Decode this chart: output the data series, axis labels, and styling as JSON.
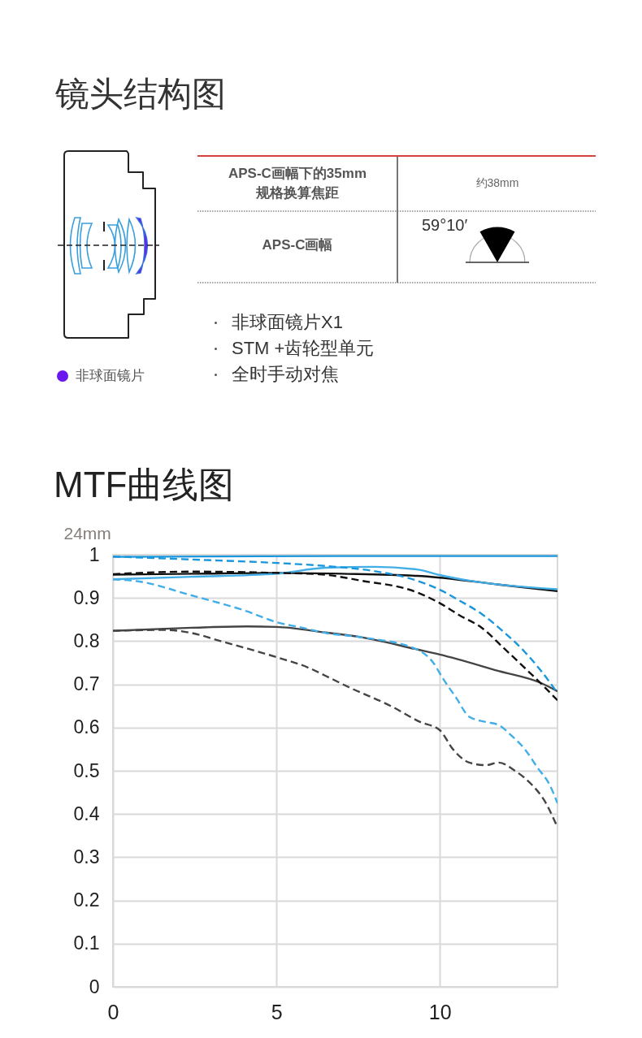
{
  "chart_data": [
    {
      "type": "other",
      "title": "镜头结构图",
      "annotations": [
        "APS-C画幅下的35mm规格换算焦距",
        "约38mm",
        "APS-C画幅",
        "59°10′",
        "非球面镜片X1",
        "STM +齿轮型单元",
        "全时手动对焦",
        "非球面镜片"
      ]
    },
    {
      "type": "line",
      "title": "MTF曲线图",
      "ylabel": "24mm",
      "xlim": [
        0,
        13.6
      ],
      "ylim": [
        0,
        1
      ],
      "xticks": [
        0,
        5,
        10
      ],
      "yticks": [
        0,
        0.1,
        0.2,
        0.3,
        0.4,
        0.5,
        0.6,
        0.7,
        0.8,
        0.9,
        1
      ],
      "grid": true,
      "series": [
        {
          "color": "#1a96dc",
          "line_style": "solid",
          "x": [
            0,
            3,
            7,
            10,
            13.6
          ],
          "values": [
            0.995,
            0.996,
            0.997,
            0.997,
            0.997
          ]
        },
        {
          "color": "#1a96dc",
          "line_style": "dashed",
          "x": [
            0,
            2.4,
            5,
            6.5,
            8,
            9.3,
            10,
            10.6,
            11.3,
            11.9,
            12.6,
            13.1,
            13.6
          ],
          "values": [
            0.996,
            0.989,
            0.981,
            0.974,
            0.962,
            0.94,
            0.919,
            0.894,
            0.862,
            0.825,
            0.775,
            0.731,
            0.68
          ]
        },
        {
          "color": "#111111",
          "line_style": "solid",
          "x": [
            0,
            2.5,
            5,
            7,
            9.3,
            10,
            11.8,
            13.6
          ],
          "values": [
            0.954,
            0.956,
            0.958,
            0.956,
            0.951,
            0.947,
            0.931,
            0.916
          ]
        },
        {
          "color": "#111111",
          "line_style": "dashed",
          "x": [
            0,
            2.4,
            5,
            6.3,
            7.6,
            9.3,
            10,
            10.6,
            11.3,
            11.9,
            12.6,
            13.2,
            13.6
          ],
          "values": [
            0.955,
            0.961,
            0.958,
            0.955,
            0.94,
            0.913,
            0.888,
            0.86,
            0.83,
            0.788,
            0.738,
            0.694,
            0.663
          ]
        },
        {
          "color": "#42aee8",
          "line_style": "solid",
          "x": [
            0,
            2.4,
            5,
            6.5,
            8,
            9.3,
            10,
            10.9,
            13.6
          ],
          "values": [
            0.943,
            0.949,
            0.956,
            0.97,
            0.972,
            0.966,
            0.953,
            0.94,
            0.92
          ]
        },
        {
          "color": "#42aee8",
          "line_style": "dashed",
          "x": [
            0,
            0.8,
            2.4,
            4.1,
            5,
            5.8,
            6.5,
            7.6,
            9.3,
            9.8,
            10.1,
            10.5,
            10.9,
            11.4,
            11.8,
            12.2,
            12.6,
            13,
            13.35,
            13.6
          ],
          "values": [
            0.943,
            0.938,
            0.906,
            0.869,
            0.844,
            0.831,
            0.819,
            0.809,
            0.781,
            0.75,
            0.713,
            0.669,
            0.625,
            0.613,
            0.606,
            0.581,
            0.55,
            0.506,
            0.469,
            0.425
          ]
        },
        {
          "color": "#444444",
          "line_style": "solid",
          "x": [
            0,
            2.4,
            4.1,
            5,
            6.5,
            7.6,
            9.3,
            10,
            11.8,
            13.1,
            13.6
          ],
          "values": [
            0.824,
            0.831,
            0.834,
            0.833,
            0.82,
            0.809,
            0.781,
            0.769,
            0.731,
            0.703,
            0.684
          ]
        },
        {
          "color": "#444444",
          "line_style": "dashed",
          "x": [
            0,
            1.6,
            2.4,
            3.3,
            5,
            6,
            6.5,
            7.2,
            8.5,
            9.4,
            10,
            10.4,
            10.9,
            11.4,
            11.8,
            12.3,
            12.8,
            13.2,
            13.6
          ],
          "values": [
            0.824,
            0.826,
            0.819,
            0.8,
            0.763,
            0.738,
            0.72,
            0.694,
            0.65,
            0.613,
            0.594,
            0.55,
            0.519,
            0.513,
            0.519,
            0.5,
            0.469,
            0.431,
            0.369
          ]
        }
      ]
    }
  ]
}
